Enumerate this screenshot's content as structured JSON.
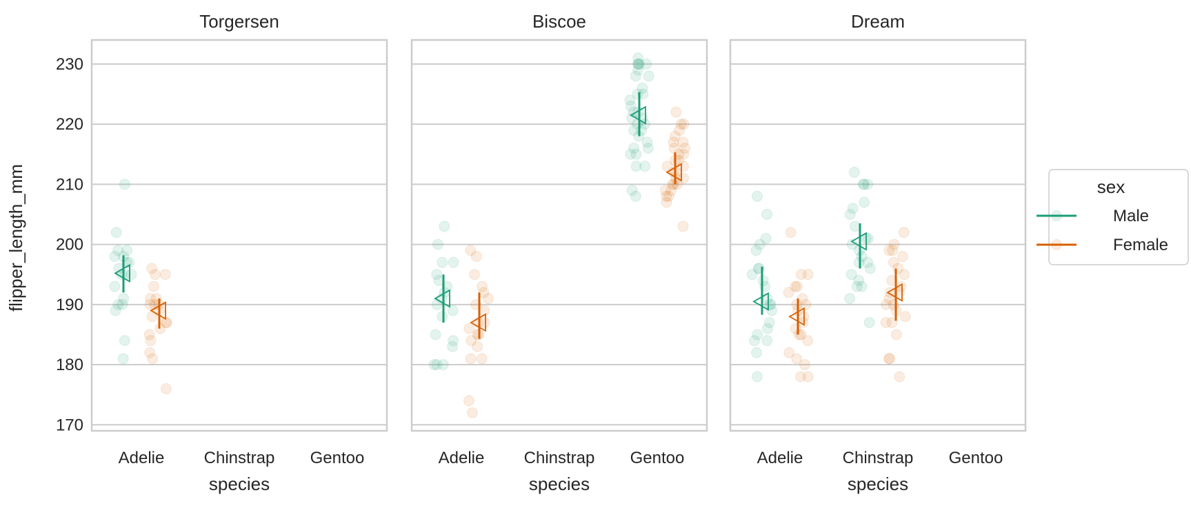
{
  "chart_data": {
    "type": "scatter",
    "facet_titles": [
      "Torgersen",
      "Biscoe",
      "Dream"
    ],
    "categories": [
      "Adelie",
      "Chinstrap",
      "Gentoo"
    ],
    "xlabel": "species",
    "ylabel": "flipper_length_mm",
    "ylim": [
      169,
      234
    ],
    "yticks": [
      170,
      180,
      190,
      200,
      210,
      220,
      230
    ],
    "grid": "horizontal",
    "legend": {
      "title": "sex",
      "placement": "right",
      "entries": [
        "Male",
        "Female"
      ]
    },
    "colors": {
      "Male": "#1b9e77",
      "Female": "#d95f02"
    },
    "series": [
      {
        "name": "Male",
        "points": [
          {
            "panel": "Torgersen",
            "category": "Adelie",
            "values": [
              181,
              184,
              189,
              190,
              190,
              191,
              193,
              195,
              195,
              195,
              196,
              197,
              197,
              198,
              198,
              199,
              199,
              202,
              210
            ],
            "mean": 195.2,
            "ci": [
              192,
              198.2
            ]
          },
          {
            "panel": "Biscoe",
            "category": "Adelie",
            "values": [
              180,
              180,
              180,
              183,
              184,
              185,
              188,
              189,
              190,
              191,
              192,
              193,
              194,
              195,
              197,
              197,
              200,
              203
            ],
            "mean": 191,
            "ci": [
              187,
              195
            ]
          },
          {
            "panel": "Biscoe",
            "category": "Gentoo",
            "values": [
              208,
              209,
              213,
              213,
              215,
              215,
              216,
              216,
              217,
              218,
              219,
              219,
              220,
              220,
              221,
              221,
              222,
              222,
              223,
              224,
              225,
              225,
              226,
              228,
              228,
              229,
              230,
              230,
              230,
              230,
              231
            ],
            "mean": 221.5,
            "ci": [
              218,
              225.3
            ]
          },
          {
            "panel": "Dream",
            "category": "Adelie",
            "values": [
              178,
              182,
              184,
              184,
              185,
              186,
              187,
              189,
              190,
              190,
              191,
              193,
              194,
              195,
              196,
              196,
              199,
              200,
              201,
              205,
              208
            ],
            "mean": 190.5,
            "ci": [
              188.3,
              196.3
            ]
          },
          {
            "panel": "Dream",
            "category": "Chinstrap",
            "values": [
              187,
              191,
              193,
              193,
              194,
              195,
              196,
              197,
              197,
              198,
              199,
              200,
              201,
              201,
              203,
              205,
              206,
              207,
              210,
              210,
              210,
              212
            ],
            "mean": 200.5,
            "ci": [
              196,
              203.5
            ]
          }
        ]
      },
      {
        "name": "Female",
        "points": [
          {
            "panel": "Torgersen",
            "category": "Adelie",
            "values": [
              176,
              181,
              182,
              184,
              185,
              186,
              187,
              187,
              188,
              189,
              190,
              190,
              190,
              191,
              191,
              193,
              195,
              195,
              196
            ],
            "mean": 189,
            "ci": [
              186,
              191
            ]
          },
          {
            "panel": "Biscoe",
            "category": "Adelie",
            "values": [
              172,
              174,
              181,
              181,
              183,
              184,
              185,
              185,
              186,
              187,
              187,
              189,
              190,
              191,
              192,
              193,
              195,
              198,
              199
            ],
            "mean": 187,
            "ci": [
              184.3,
              192
            ]
          },
          {
            "panel": "Biscoe",
            "category": "Gentoo",
            "values": [
              203,
              207,
              208,
              208,
              209,
              209,
              210,
              210,
              210,
              211,
              211,
              212,
              212,
              213,
              213,
              214,
              214,
              215,
              215,
              216,
              216,
              217,
              217,
              218,
              219,
              220,
              220,
              222
            ],
            "mean": 212,
            "ci": [
              210,
              215.3
            ]
          },
          {
            "panel": "Dream",
            "category": "Adelie",
            "values": [
              178,
              178,
              180,
              181,
              182,
              184,
              185,
              185,
              186,
              187,
              188,
              189,
              190,
              190,
              191,
              192,
              193,
              193,
              195,
              195,
              202
            ],
            "mean": 188,
            "ci": [
              185,
              191
            ]
          },
          {
            "panel": "Dream",
            "category": "Chinstrap",
            "values": [
              178,
              181,
              181,
              185,
              187,
              187,
              188,
              189,
              190,
              190,
              191,
              192,
              192,
              193,
              194,
              195,
              196,
              197,
              198,
              199,
              199,
              200,
              202
            ],
            "mean": 192,
            "ci": [
              187.3,
              196
            ]
          }
        ]
      }
    ]
  }
}
